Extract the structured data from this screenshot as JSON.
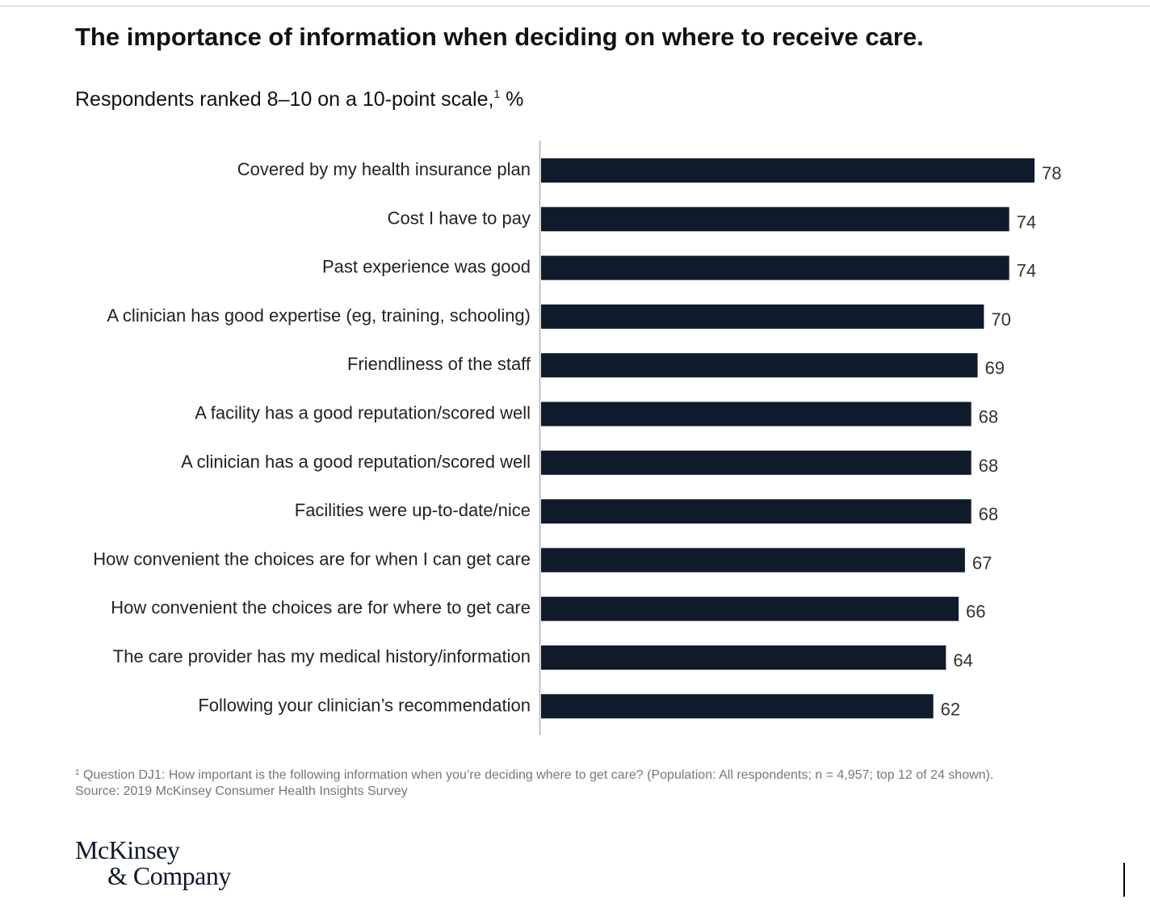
{
  "chart_data": {
    "type": "bar",
    "orientation": "horizontal",
    "title": "The importance of information when deciding on where to receive care.",
    "subtitle": "Respondents ranked 8–10 on a 10-point scale,",
    "subtitle_sup": "1",
    "subtitle_unit": " %",
    "categories": [
      "Covered by my health insurance plan",
      "Cost I have to pay",
      "Past experience was good",
      "A clinician has good expertise (eg, training, schooling)",
      "Friendliness of the staff",
      "A facility has a good reputation/scored well",
      "A clinician has a good reputation/scored well",
      "Facilities were up-to-date/nice",
      "How convenient the choices are for when I can get care",
      "How convenient the choices are for where to get care",
      "The care provider has my medical history/information",
      "Following your clinician’s recommendation"
    ],
    "values": [
      78,
      74,
      74,
      70,
      69,
      68,
      68,
      68,
      67,
      66,
      64,
      62
    ],
    "xlim": [
      0,
      78
    ],
    "grid": false,
    "legend": "none",
    "bar_color": "#0f1b2a"
  },
  "footnote": {
    "marker": "1",
    "line1": " Question DJ1: How important is the following information when you’re deciding where to get care? (Population: All respondents; n = 4,957; top 12 of 24 shown).",
    "line2": "Source: 2019 McKinsey Consumer Health Insights Survey"
  },
  "logo": {
    "line1": "McKinsey",
    "line2": "& Company"
  }
}
